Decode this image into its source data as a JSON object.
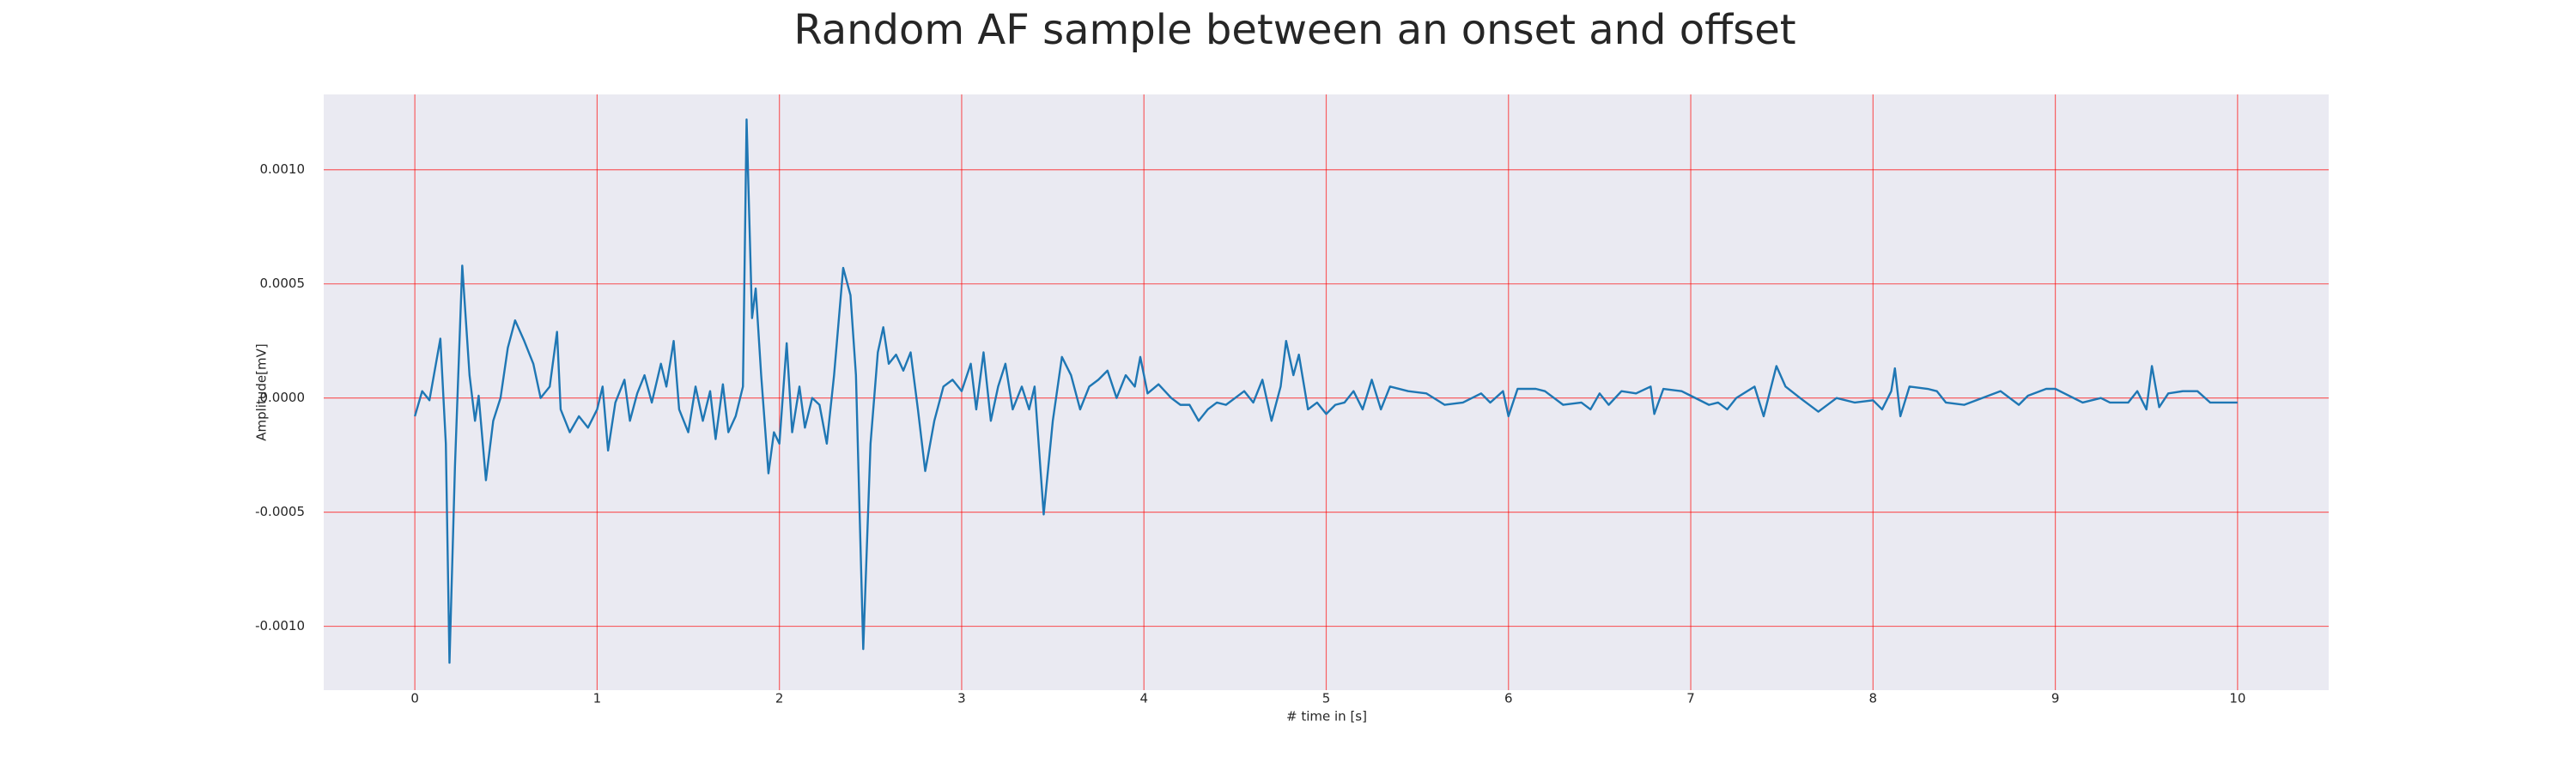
{
  "chart_data": {
    "type": "line",
    "title": "Random AF sample between an onset and offset",
    "xlabel": "# time in [s]",
    "ylabel": "Amplitude[mV]",
    "color": "#1f77b4",
    "grid": true,
    "grid_color": "#ff0000",
    "background": "#eaeaf2",
    "xlim": [
      -0.5,
      10.5
    ],
    "ylim": [
      -0.00128,
      0.00133
    ],
    "xticks": [
      0,
      1,
      2,
      3,
      4,
      5,
      6,
      7,
      8,
      9,
      10
    ],
    "yticks": [
      {
        "value": -0.001,
        "label": "-0.0010"
      },
      {
        "value": -0.0005,
        "label": "-0.0005"
      },
      {
        "value": 0,
        "label": "0.0000"
      },
      {
        "value": 0.0005,
        "label": "0.0005"
      },
      {
        "value": 0.001,
        "label": "0.0010"
      }
    ],
    "x": [
      0,
      0.04,
      0.08,
      0.14,
      0.17,
      0.19,
      0.22,
      0.26,
      0.3,
      0.33,
      0.35,
      0.39,
      0.43,
      0.47,
      0.51,
      0.55,
      0.6,
      0.65,
      0.69,
      0.74,
      0.78,
      0.8,
      0.85,
      0.9,
      0.95,
      1.0,
      1.03,
      1.06,
      1.1,
      1.15,
      1.18,
      1.22,
      1.26,
      1.3,
      1.35,
      1.38,
      1.42,
      1.45,
      1.5,
      1.54,
      1.58,
      1.62,
      1.65,
      1.69,
      1.72,
      1.76,
      1.8,
      1.82,
      1.85,
      1.87,
      1.9,
      1.94,
      1.97,
      2.0,
      2.04,
      2.07,
      2.11,
      2.14,
      2.18,
      2.22,
      2.26,
      2.3,
      2.35,
      2.39,
      2.42,
      2.46,
      2.5,
      2.54,
      2.57,
      2.6,
      2.64,
      2.68,
      2.72,
      2.76,
      2.8,
      2.85,
      2.9,
      2.95,
      3.0,
      3.05,
      3.08,
      3.12,
      3.16,
      3.2,
      3.24,
      3.28,
      3.33,
      3.37,
      3.4,
      3.45,
      3.5,
      3.55,
      3.6,
      3.65,
      3.7,
      3.75,
      3.8,
      3.85,
      3.9,
      3.95,
      3.98,
      4.02,
      4.08,
      4.15,
      4.2,
      4.25,
      4.3,
      4.35,
      4.4,
      4.45,
      4.5,
      4.55,
      4.6,
      4.65,
      4.7,
      4.75,
      4.78,
      4.82,
      4.85,
      4.9,
      4.95,
      5.0,
      5.05,
      5.1,
      5.15,
      5.2,
      5.25,
      5.3,
      5.35,
      5.45,
      5.55,
      5.65,
      5.75,
      5.85,
      5.9,
      5.97,
      6.0,
      6.05,
      6.15,
      6.2,
      6.3,
      6.4,
      6.45,
      6.5,
      6.55,
      6.62,
      6.7,
      6.78,
      6.8,
      6.85,
      6.95,
      7.0,
      7.1,
      7.15,
      7.2,
      7.25,
      7.35,
      7.4,
      7.47,
      7.52,
      7.6,
      7.7,
      7.8,
      7.9,
      8.0,
      8.05,
      8.1,
      8.12,
      8.15,
      8.2,
      8.3,
      8.35,
      8.4,
      8.5,
      8.6,
      8.7,
      8.8,
      8.85,
      8.95,
      9.0,
      9.05,
      9.15,
      9.25,
      9.3,
      9.4,
      9.45,
      9.5,
      9.53,
      9.57,
      9.62,
      9.7,
      9.78,
      9.85,
      9.95,
      10.0
    ],
    "values": [
      -8e-05,
      3e-05,
      -1e-05,
      0.00026,
      -0.0002,
      -0.00116,
      -0.0003,
      0.00058,
      0.0001,
      -0.0001,
      1e-05,
      -0.00036,
      -0.0001,
      0,
      0.00022,
      0.00034,
      0.00025,
      0.00015,
      0,
      5e-05,
      0.00029,
      -5e-05,
      -0.00015,
      -8e-05,
      -0.00013,
      -5e-05,
      5e-05,
      -0.00023,
      -2e-05,
      8e-05,
      -0.0001,
      2e-05,
      0.0001,
      -2e-05,
      0.00015,
      5e-05,
      0.00025,
      -5e-05,
      -0.00015,
      5e-05,
      -0.0001,
      3e-05,
      -0.00018,
      6e-05,
      -0.00015,
      -8e-05,
      5e-05,
      0.00122,
      0.00035,
      0.00048,
      0.0001,
      -0.00033,
      -0.00015,
      -0.0002,
      0.00024,
      -0.00015,
      5e-05,
      -0.00013,
      0,
      -3e-05,
      -0.0002,
      0.0001,
      0.00057,
      0.00045,
      0.0001,
      -0.0011,
      -0.0002,
      0.0002,
      0.00031,
      0.00015,
      0.00019,
      0.00012,
      0.0002,
      -5e-05,
      -0.00032,
      -0.0001,
      5e-05,
      8e-05,
      3e-05,
      0.00015,
      -5e-05,
      0.0002,
      -0.0001,
      5e-05,
      0.00015,
      -5e-05,
      5e-05,
      -5e-05,
      5e-05,
      -0.00051,
      -0.0001,
      0.00018,
      0.0001,
      -5e-05,
      5e-05,
      8e-05,
      0.00012,
      0,
      0.0001,
      5e-05,
      0.00018,
      2e-05,
      6e-05,
      0,
      -3e-05,
      -3e-05,
      -0.0001,
      -5e-05,
      -2e-05,
      -3e-05,
      0,
      3e-05,
      -2e-05,
      8e-05,
      -0.0001,
      5e-05,
      0.00025,
      0.0001,
      0.00019,
      -5e-05,
      -2e-05,
      -7e-05,
      -3e-05,
      -2e-05,
      3e-05,
      -5e-05,
      8e-05,
      -5e-05,
      5e-05,
      3e-05,
      2e-05,
      -3e-05,
      -2e-05,
      2e-05,
      -2e-05,
      3e-05,
      -8e-05,
      4e-05,
      4e-05,
      3e-05,
      -3e-05,
      -2e-05,
      -5e-05,
      2e-05,
      -3e-05,
      3e-05,
      2e-05,
      5e-05,
      -7e-05,
      4e-05,
      3e-05,
      1e-05,
      -3e-05,
      -2e-05,
      -5e-05,
      0,
      5e-05,
      -8e-05,
      0.00014,
      5e-05,
      0,
      -6e-05,
      0,
      -2e-05,
      -1e-05,
      -5e-05,
      3e-05,
      0.00013,
      -8e-05,
      5e-05,
      4e-05,
      3e-05,
      -2e-05,
      -3e-05,
      0,
      3e-05,
      -3e-05,
      1e-05,
      4e-05,
      4e-05,
      2e-05,
      -2e-05,
      0,
      -2e-05,
      -2e-05,
      3e-05,
      -5e-05,
      0.00014,
      -4e-05,
      2e-05,
      3e-05,
      3e-05,
      -2e-05,
      -2e-05,
      -2e-05
    ]
  }
}
